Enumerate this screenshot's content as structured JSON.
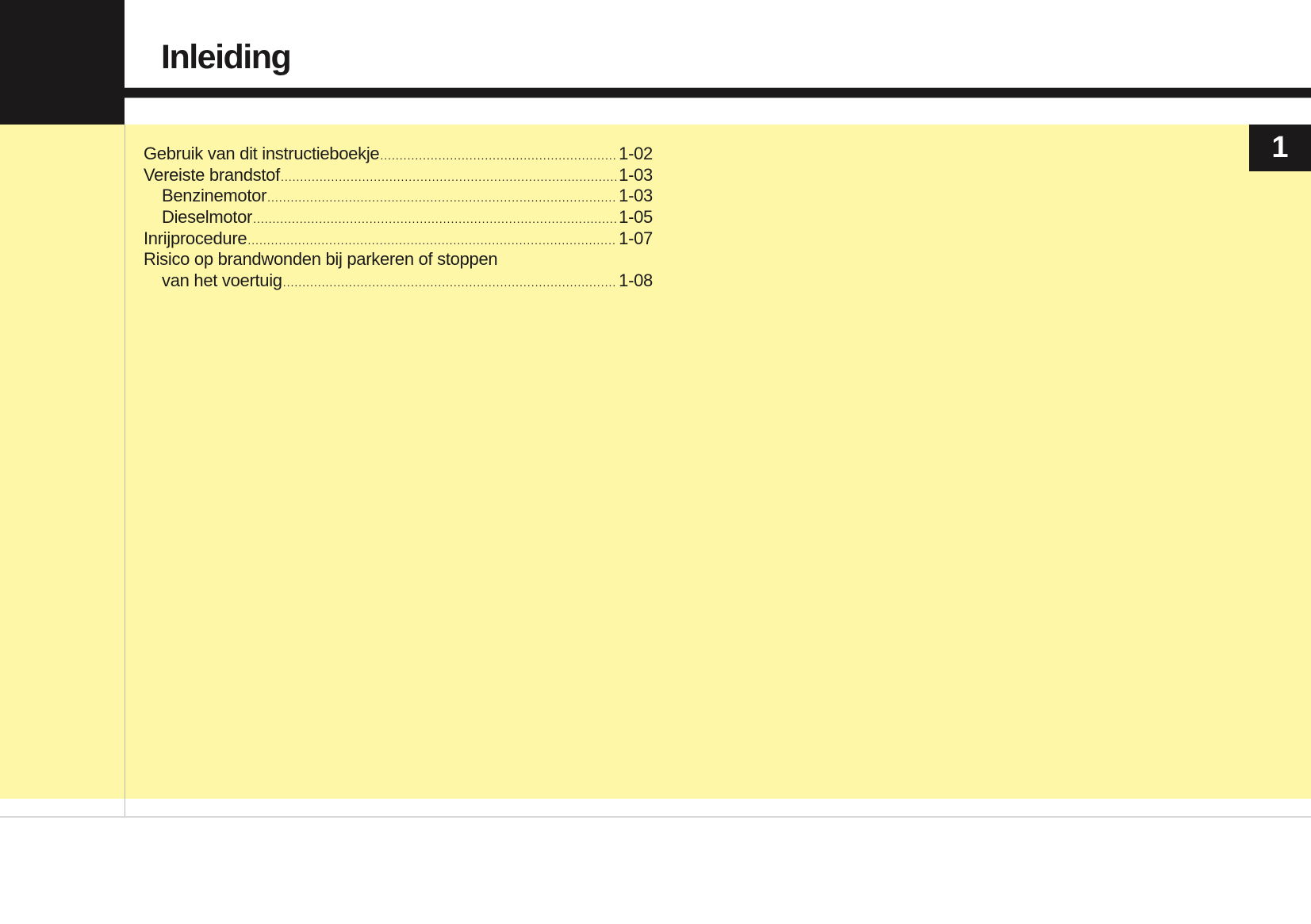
{
  "header": {
    "title": "Inleiding"
  },
  "chapter_tab": {
    "number": "1"
  },
  "toc": [
    {
      "label": "Gebruik van dit instructieboekje",
      "page": "1-02",
      "indent": false
    },
    {
      "label": "Vereiste brandstof",
      "page": "1-03",
      "indent": false
    },
    {
      "label": "Benzinemotor",
      "page": "1-03",
      "indent": true
    },
    {
      "label": "Dieselmotor",
      "page": "1-05",
      "indent": true
    },
    {
      "label": "Inrijprocedure",
      "page": "1-07",
      "indent": false
    },
    {
      "label": "Risico op brandwonden bij parkeren of stoppen",
      "page": null,
      "indent": false
    },
    {
      "label": "van het voertuig",
      "page": "1-08",
      "indent": true
    }
  ],
  "colors": {
    "background_band": "#fff7a8",
    "dark": "#1b191a"
  }
}
